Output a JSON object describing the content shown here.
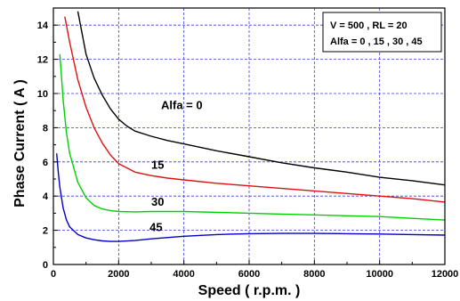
{
  "chart_data": {
    "type": "line",
    "xlabel": "Speed   ( r.p.m. )",
    "ylabel": "Phase Current  ( A )",
    "xlim": [
      0,
      12000
    ],
    "ylim": [
      0,
      15
    ],
    "xticks": [
      0,
      2000,
      4000,
      6000,
      8000,
      10000,
      12000
    ],
    "yticks": [
      0,
      2,
      4,
      6,
      8,
      10,
      12,
      14
    ],
    "grid": true,
    "legend": {
      "placement": "top-right",
      "lines": [
        "V = 500 , RL = 20",
        "Alfa = 0 , 15 , 30 , 45"
      ]
    },
    "series": [
      {
        "name": "Alfa = 0",
        "color": "#000000",
        "x": [
          750,
          1000,
          1250,
          1500,
          1750,
          2000,
          2250,
          2500,
          3000,
          3500,
          4000,
          5000,
          6000,
          7000,
          8000,
          9000,
          10000,
          11000,
          12000
        ],
        "y": [
          14.8,
          12.3,
          10.9,
          9.9,
          9.1,
          8.5,
          8.1,
          7.8,
          7.5,
          7.25,
          7.05,
          6.65,
          6.3,
          5.95,
          5.65,
          5.4,
          5.1,
          4.9,
          4.65
        ]
      },
      {
        "name": "15",
        "color": "#e01010",
        "x": [
          350,
          500,
          750,
          1000,
          1250,
          1500,
          1750,
          2000,
          2500,
          3000,
          3500,
          4000,
          5000,
          6000,
          7000,
          8000,
          9000,
          10000,
          11000,
          12000
        ],
        "y": [
          14.5,
          13.0,
          10.8,
          9.2,
          8.0,
          7.1,
          6.4,
          5.9,
          5.4,
          5.2,
          5.05,
          4.95,
          4.75,
          4.6,
          4.45,
          4.3,
          4.15,
          4.0,
          3.85,
          3.65
        ]
      },
      {
        "name": "30",
        "color": "#00d000",
        "x": [
          200,
          300,
          400,
          500,
          750,
          1000,
          1250,
          1500,
          1750,
          2000,
          2500,
          3000,
          3500,
          4000,
          5000,
          6000,
          7000,
          8000,
          9000,
          10000,
          11000,
          12000
        ],
        "y": [
          12.3,
          9.6,
          7.7,
          6.5,
          4.8,
          3.9,
          3.45,
          3.25,
          3.15,
          3.1,
          3.08,
          3.1,
          3.1,
          3.1,
          3.05,
          3.0,
          2.95,
          2.9,
          2.85,
          2.8,
          2.7,
          2.6
        ]
      },
      {
        "name": "45",
        "color": "#0000c8",
        "x": [
          100,
          150,
          200,
          300,
          400,
          500,
          750,
          1000,
          1250,
          1500,
          1750,
          2000,
          2500,
          3000,
          4000,
          5000,
          6000,
          7000,
          8000,
          9000,
          10000,
          11000,
          12000
        ],
        "y": [
          6.5,
          5.4,
          4.5,
          3.3,
          2.6,
          2.2,
          1.75,
          1.55,
          1.45,
          1.38,
          1.35,
          1.35,
          1.4,
          1.5,
          1.65,
          1.75,
          1.8,
          1.82,
          1.82,
          1.8,
          1.78,
          1.75,
          1.72
        ]
      }
    ],
    "annotations": [
      {
        "text": "Alfa = 0",
        "x": 3300,
        "y": 9.1
      },
      {
        "text": "15",
        "x": 3000,
        "y": 5.6
      },
      {
        "text": "30",
        "x": 3000,
        "y": 3.45
      },
      {
        "text": "45",
        "x": 2950,
        "y": 1.95
      }
    ]
  }
}
